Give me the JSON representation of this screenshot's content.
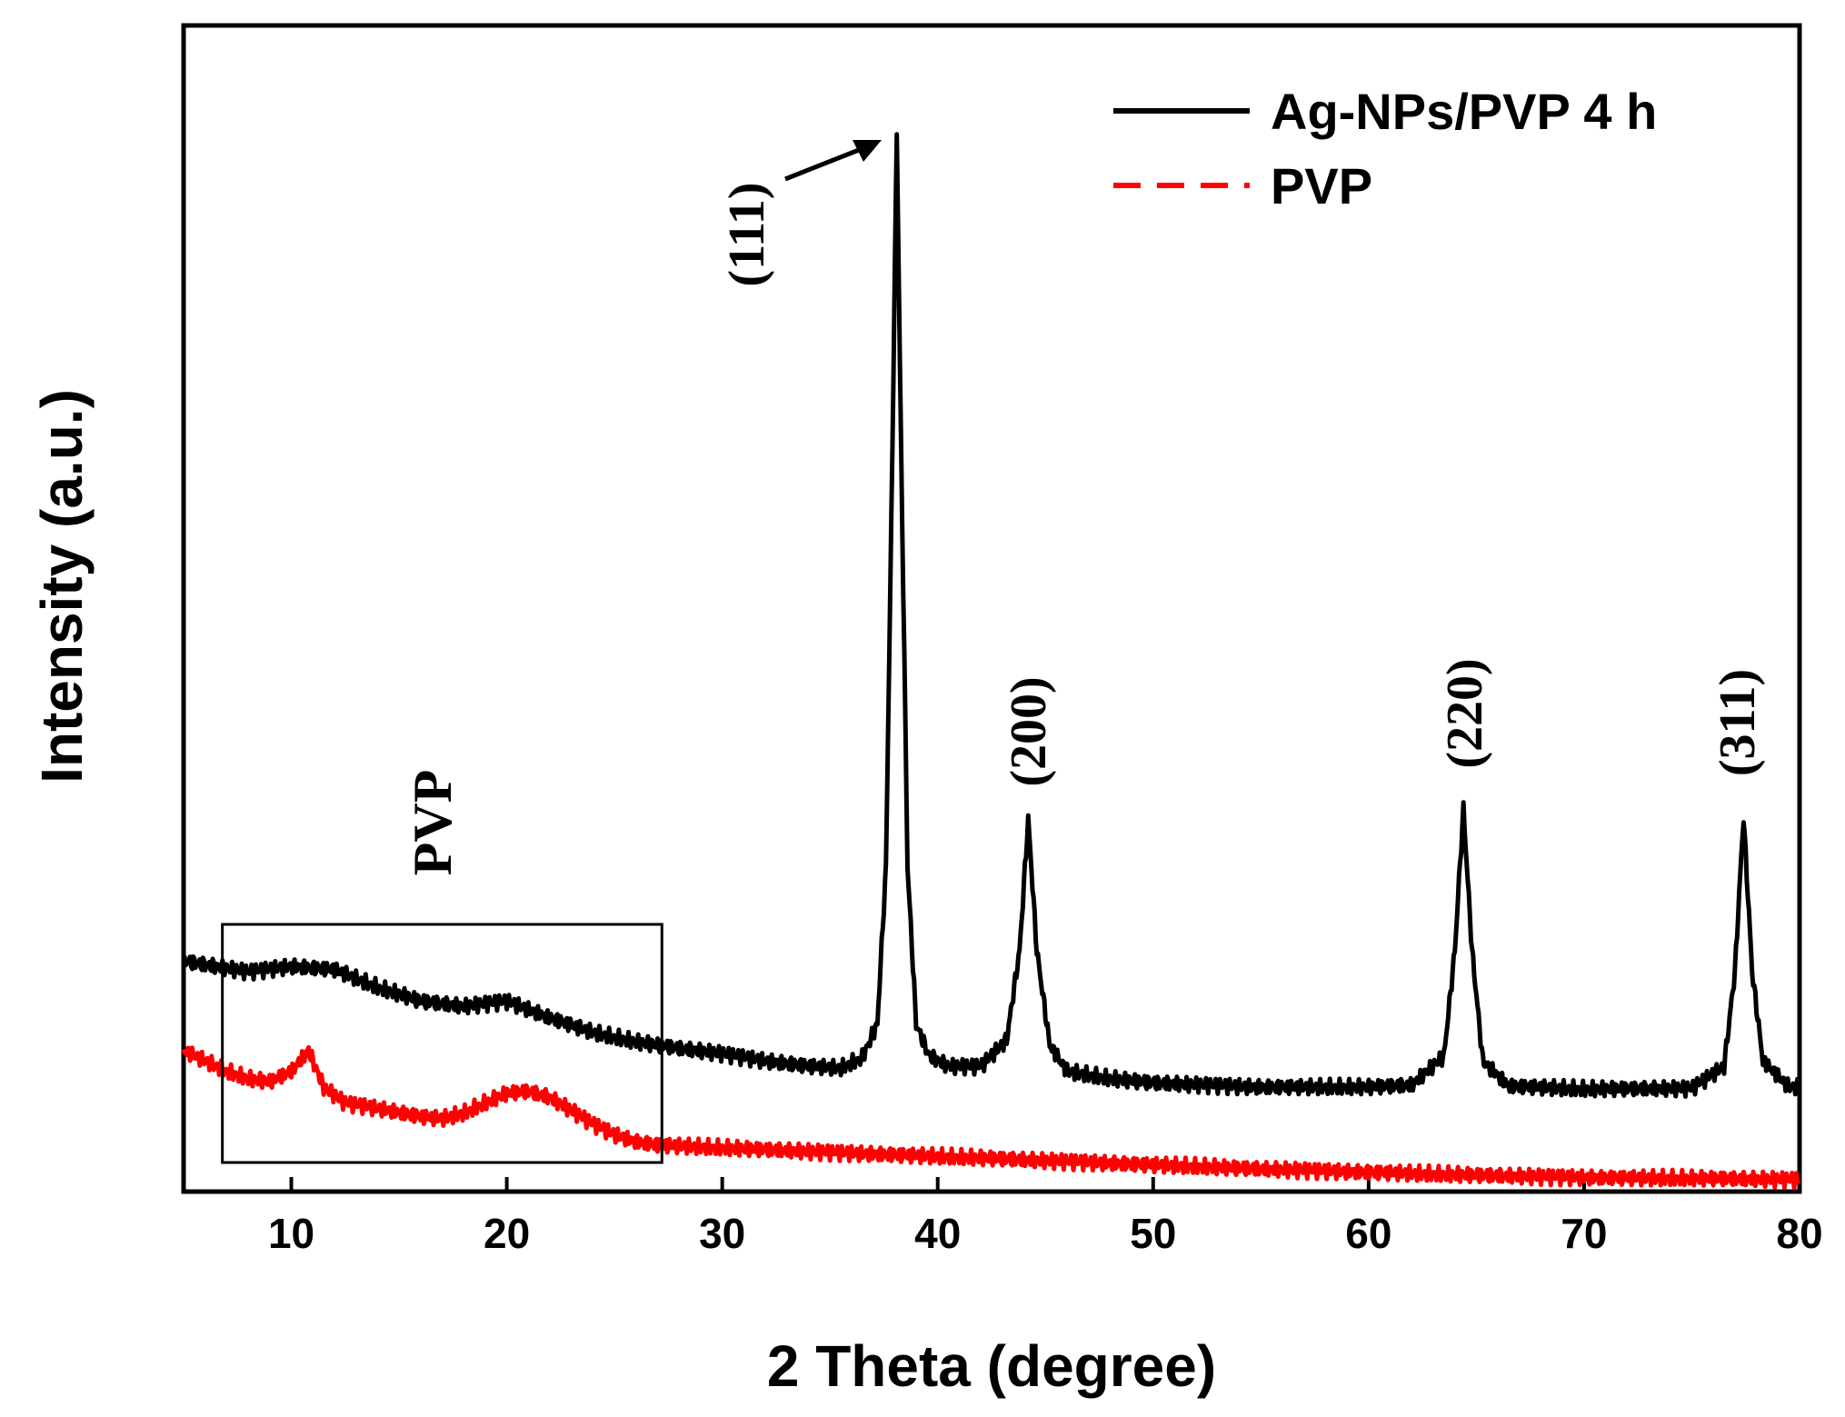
{
  "chart_data": {
    "type": "line",
    "xlabel": "2 Theta (degree)",
    "ylabel": "Intensity (a.u.)",
    "xlim": [
      5,
      80
    ],
    "ylim": [
      0,
      100
    ],
    "xticks": [
      10,
      20,
      30,
      40,
      50,
      60,
      70,
      80
    ],
    "legend_position": "top-right",
    "colors": {
      "ag": "#000000",
      "pvp": "#ff0000"
    },
    "series": [
      {
        "name": "Ag-NPs/PVP 4 h",
        "style": "solid",
        "color": "#000000",
        "x": [
          5,
          8,
          10,
          12,
          14,
          16,
          18,
          20,
          22,
          24,
          26,
          28,
          30,
          32,
          34,
          35.5,
          36.5,
          37.2,
          37.6,
          37.9,
          38.1,
          38.3,
          38.6,
          39.0,
          39.6,
          40.5,
          42,
          43.2,
          43.8,
          44.2,
          44.6,
          45.2,
          46,
          48,
          50,
          55,
          60,
          62,
          63.5,
          64.0,
          64.4,
          64.8,
          65.3,
          66.5,
          70,
          75,
          76.5,
          77.0,
          77.4,
          77.8,
          78.3,
          79.5,
          80
        ],
        "y": [
          21,
          20,
          20.5,
          20.2,
          18.5,
          17.2,
          16.7,
          17.2,
          15.6,
          14.2,
          13.3,
          12.7,
          12.2,
          11.5,
          11.0,
          10.8,
          11.8,
          15,
          30,
          70,
          100,
          70,
          30,
          15,
          12,
          11,
          11.0,
          13.5,
          22,
          34.5,
          22,
          13,
          10.5,
          9.8,
          9.4,
          9.0,
          9.0,
          9.2,
          12,
          22,
          35.5,
          22,
          11.5,
          9.1,
          8.8,
          8.9,
          11,
          20,
          34.8,
          20,
          11.5,
          9.0,
          9.0
        ]
      },
      {
        "name": "PVP",
        "style": "dashed",
        "color": "#ff0000",
        "x": [
          5,
          6,
          7,
          8,
          9,
          10,
          10.8,
          11.5,
          12.5,
          14,
          16,
          17,
          18,
          19,
          20,
          21,
          22,
          23,
          24,
          25,
          26,
          27,
          28,
          30,
          35,
          40,
          45,
          50,
          55,
          60,
          65,
          70,
          75,
          80
        ],
        "y": [
          12.5,
          11.5,
          10.5,
          9.8,
          9.5,
          10.5,
          12.5,
          9.0,
          7.5,
          7.0,
          6.2,
          6.0,
          6.5,
          7.5,
          8.4,
          8.6,
          8.0,
          6.8,
          5.5,
          4.5,
          3.8,
          3.5,
          3.4,
          3.2,
          2.8,
          2.4,
          2.0,
          1.6,
          1.2,
          0.9,
          0.6,
          0.4,
          0.3,
          0.2
        ]
      }
    ],
    "annotations": {
      "peaks": [
        {
          "label": "(111)",
          "x": 38.1
        },
        {
          "label": "(200)",
          "x": 44.2
        },
        {
          "label": "(220)",
          "x": 64.4
        },
        {
          "label": "(311)",
          "x": 77.4
        }
      ],
      "region_label": "PVP",
      "region_x": [
        6.8,
        27.2
      ]
    }
  }
}
